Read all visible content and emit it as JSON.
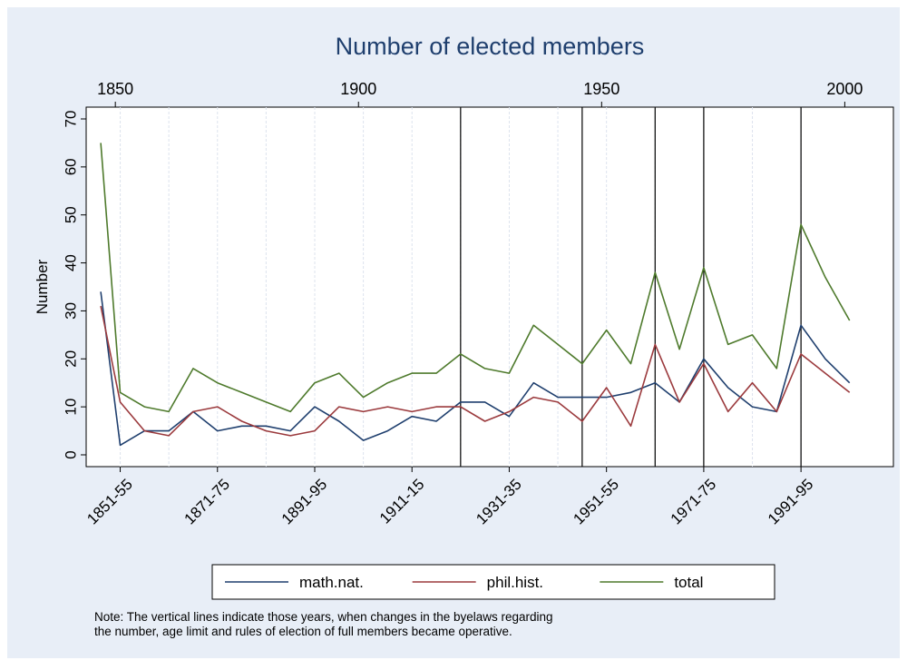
{
  "chart_data": {
    "type": "line",
    "title": "Number of elected members",
    "ylabel": "Number",
    "xlabel": "",
    "ylim": [
      0,
      70
    ],
    "y_ticks": [
      0,
      10,
      20,
      30,
      40,
      50,
      60,
      70
    ],
    "top_axis_ticks": [
      "1850",
      "1900",
      "1950",
      "2000"
    ],
    "top_axis_years": [
      1850,
      1900,
      1950,
      2000
    ],
    "x_tick_labels": [
      "1851-55",
      "1871-75",
      "1891-95",
      "1911-15",
      "1931-35",
      "1951-55",
      "1971-75",
      "1991-95"
    ],
    "x_tick_positions": [
      1851,
      1871,
      1891,
      1911,
      1931,
      1951,
      1971,
      1991
    ],
    "x": [
      1847,
      1851,
      1856,
      1861,
      1866,
      1871,
      1876,
      1881,
      1886,
      1891,
      1896,
      1901,
      1906,
      1911,
      1916,
      1921,
      1926,
      1931,
      1936,
      1941,
      1946,
      1951,
      1956,
      1961,
      1966,
      1971,
      1976,
      1981,
      1986,
      1991,
      1996,
      2001
    ],
    "series": [
      {
        "name": "math.nat.",
        "color": "#1f3f6e",
        "values": [
          34,
          2,
          5,
          5,
          9,
          5,
          6,
          6,
          5,
          10,
          7,
          3,
          5,
          8,
          7,
          11,
          11,
          8,
          15,
          12,
          12,
          12,
          13,
          15,
          11,
          20,
          14,
          10,
          9,
          27,
          20,
          15
        ]
      },
      {
        "name": "phil.hist.",
        "color": "#9b3a3d",
        "values": [
          31,
          11,
          5,
          4,
          9,
          10,
          7,
          5,
          4,
          5,
          10,
          9,
          10,
          9,
          10,
          10,
          7,
          9,
          12,
          11,
          7,
          14,
          6,
          23,
          11,
          19,
          9,
          15,
          9,
          21,
          17,
          13
        ]
      },
      {
        "name": "total",
        "color": "#4e7a2c",
        "values": [
          65,
          13,
          10,
          9,
          18,
          15,
          13,
          11,
          9,
          15,
          17,
          12,
          15,
          17,
          17,
          21,
          18,
          17,
          27,
          23,
          19,
          26,
          19,
          38,
          22,
          39,
          23,
          25,
          18,
          48,
          37,
          28
        ]
      }
    ],
    "vertical_lines": [
      1921,
      1946,
      1961,
      1971,
      1991
    ],
    "grid": "vertical dashed",
    "legend_position": "bottom"
  },
  "note": {
    "line1": "Note: The vertical lines indicate those years, when changes in the byelaws regarding",
    "line2": "the number, age limit and rules of election of full members became operative."
  },
  "colors": {
    "outer_background": "#e8eef7",
    "plot_background": "#ffffff"
  }
}
